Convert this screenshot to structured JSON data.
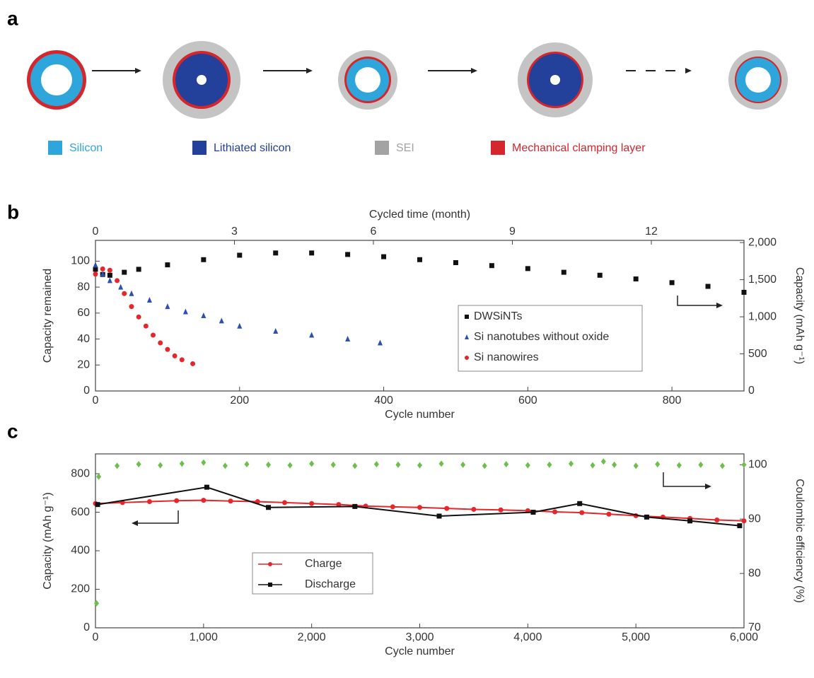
{
  "diagram": {
    "label": "a",
    "legend": [
      {
        "label": "Silicon",
        "color": "#2ea6dc"
      },
      {
        "label": "Lithiated silicon",
        "color": "#23409a"
      },
      {
        "label": "SEI",
        "color": "#a3a3a3"
      },
      {
        "label": "Mechanical clamping layer",
        "color": "#d4262b"
      }
    ]
  },
  "chart_data": [
    {
      "type": "line",
      "label": "b",
      "xlabel": "Cycle number",
      "ylabel": "Capacity remained",
      "y2label": "Capacity (mAh g⁻¹)",
      "x2label": "Cycled time (month)",
      "xlim": [
        0,
        900
      ],
      "xticks": [
        0,
        200,
        400,
        600,
        800
      ],
      "ylim": [
        0,
        116
      ],
      "yticks": [
        0,
        20,
        40,
        60,
        80,
        100
      ],
      "y2lim": [
        0,
        2030
      ],
      "y2ticks": [
        0,
        500,
        {
          "value": 1000,
          "label": "1,000"
        },
        {
          "value": 1500,
          "label": "1,500"
        },
        {
          "value": 2000,
          "label": "2,000"
        }
      ],
      "x2lim": [
        0,
        14
      ],
      "x2ticks": [
        0,
        3,
        6,
        9,
        12
      ],
      "series": [
        {
          "name": "DWSiNTs",
          "color": "#111111",
          "marker": "square",
          "axis": "y2",
          "x": [
            0,
            10,
            20,
            40,
            60,
            100,
            150,
            200,
            250,
            300,
            350,
            400,
            450,
            500,
            550,
            600,
            650,
            700,
            750,
            800,
            850,
            900
          ],
          "values": [
            1640,
            1570,
            1560,
            1600,
            1640,
            1700,
            1770,
            1830,
            1860,
            1860,
            1840,
            1810,
            1770,
            1730,
            1690,
            1650,
            1600,
            1560,
            1510,
            1460,
            1410,
            1330
          ]
        },
        {
          "name": "Si nanotubes without oxide",
          "color": "#2c4fb3",
          "marker": "triangle",
          "x": [
            0,
            10,
            20,
            35,
            50,
            75,
            100,
            125,
            150,
            175,
            200,
            250,
            300,
            350,
            395
          ],
          "values": [
            97,
            90,
            85,
            80,
            75,
            70,
            65,
            61,
            58,
            54,
            50,
            46,
            43,
            40,
            37
          ]
        },
        {
          "name": "Si nanowires",
          "color": "#e6262a",
          "marker": "circle",
          "x": [
            0,
            10,
            20,
            30,
            40,
            50,
            60,
            70,
            80,
            90,
            100,
            110,
            120,
            135
          ],
          "values": [
            90,
            94,
            93,
            85,
            75,
            65,
            57,
            50,
            43,
            37,
            32,
            27,
            24,
            21
          ]
        }
      ]
    },
    {
      "type": "line",
      "label": "c",
      "xlabel": "Cycle number",
      "ylabel": "Capacity (mAh g⁻¹)",
      "y2label": "Coulombic efficiency (%)",
      "xlim": [
        0,
        6000
      ],
      "xticks": [
        0,
        {
          "value": 1000,
          "label": "1,000"
        },
        {
          "value": 2000,
          "label": "2,000"
        },
        {
          "value": 3000,
          "label": "3,000"
        },
        {
          "value": 4000,
          "label": "4,000"
        },
        {
          "value": 5000,
          "label": "5,000"
        },
        {
          "value": 6000,
          "label": "6,000"
        }
      ],
      "ylim": [
        0,
        903
      ],
      "yticks": [
        0,
        200,
        400,
        600,
        800
      ],
      "y2lim": [
        70,
        102
      ],
      "y2ticks": [
        70,
        80,
        90,
        100
      ],
      "series": [
        {
          "name": "Charge",
          "color": "#e6262a",
          "marker": "circle",
          "line": true,
          "x": [
            0,
            250,
            500,
            750,
            1000,
            1250,
            1500,
            1750,
            2000,
            2250,
            2500,
            2750,
            3000,
            3250,
            3500,
            3750,
            4000,
            4250,
            4500,
            4750,
            5000,
            5250,
            5500,
            5750,
            6000
          ],
          "values": [
            645,
            650,
            655,
            660,
            662,
            658,
            655,
            650,
            645,
            640,
            632,
            628,
            625,
            620,
            615,
            612,
            608,
            602,
            598,
            590,
            582,
            575,
            568,
            560,
            555
          ]
        },
        {
          "name": "Discharge",
          "color": "#111111",
          "marker": "square",
          "line": true,
          "x": [
            20,
            1030,
            1600,
            2400,
            3180,
            4050,
            4480,
            5100,
            5500,
            5960
          ],
          "values": [
            640,
            730,
            625,
            630,
            580,
            600,
            645,
            575,
            555,
            530
          ]
        },
        {
          "color": "#6cc04a",
          "marker": "diamond",
          "axis": "y2",
          "x": [
            10,
            30,
            200,
            400,
            600,
            800,
            1000,
            1200,
            1400,
            1600,
            1800,
            2000,
            2200,
            2400,
            2600,
            2800,
            3000,
            3200,
            3400,
            3600,
            3800,
            4000,
            4200,
            4400,
            4600,
            4700,
            4800,
            5000,
            5200,
            5400,
            5600,
            5800,
            6000
          ],
          "values": [
            74.5,
            97.8,
            99.8,
            100.1,
            99.9,
            100.2,
            100.4,
            99.8,
            100.1,
            100,
            99.9,
            100.2,
            100,
            99.8,
            100.1,
            100,
            99.9,
            100.2,
            100,
            99.8,
            100.1,
            99.9,
            100,
            100.2,
            99.9,
            100.6,
            100,
            99.8,
            100.1,
            99.9,
            100,
            99.8,
            100
          ]
        }
      ]
    }
  ]
}
